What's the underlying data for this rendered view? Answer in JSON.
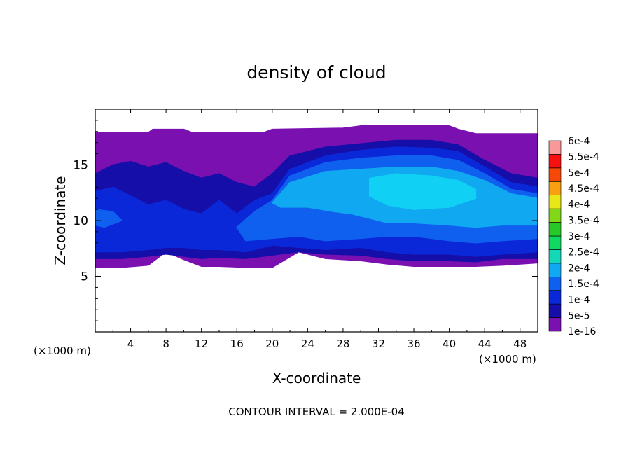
{
  "chart_data": {
    "type": "heatmap",
    "title": "density of cloud",
    "xlabel": "X-coordinate",
    "ylabel": "Z-coordinate",
    "x_unit": "(×1000 m)",
    "y_unit": "(×1000 m)",
    "xlim": [
      0,
      50
    ],
    "ylim": [
      0,
      20
    ],
    "x_ticks": [
      4,
      8,
      12,
      16,
      20,
      24,
      28,
      32,
      36,
      40,
      44,
      48
    ],
    "y_ticks": [
      5,
      10,
      15
    ],
    "footer": "CONTOUR INTERVAL = 2.000E-04",
    "colorbar": {
      "labels": [
        "1e-16",
        "5e-5",
        "1e-4",
        "1.5e-4",
        "2e-4",
        "2.5e-4",
        "3e-4",
        "3.5e-4",
        "4e-4",
        "4.5e-4",
        "5e-4",
        "5.5e-4",
        "6e-4"
      ],
      "colors": [
        "#7a10b0",
        "#160ea8",
        "#0a28d8",
        "#1060f0",
        "#10a8f0",
        "#12d8b8",
        "#10d860",
        "#28c828",
        "#80d818",
        "#e8e818",
        "#f8a010",
        "#f84808",
        "#f81010",
        "#f89898"
      ]
    },
    "cloud_layers": [
      {
        "level": "1e-16",
        "color": "#7a10b0",
        "top": [
          [
            0,
            17.9
          ],
          [
            3,
            17.9
          ],
          [
            6,
            17.9
          ],
          [
            6.5,
            18.2
          ],
          [
            10,
            18.2
          ],
          [
            11,
            17.9
          ],
          [
            19,
            17.9
          ],
          [
            20,
            18.2
          ],
          [
            28,
            18.3
          ],
          [
            30,
            18.5
          ],
          [
            40,
            18.5
          ],
          [
            41,
            18.2
          ],
          [
            43,
            17.8
          ],
          [
            50,
            17.8
          ]
        ],
        "bottom": [
          [
            50,
            6.2
          ],
          [
            46,
            6.0
          ],
          [
            43,
            5.9
          ],
          [
            40,
            5.9
          ],
          [
            36,
            5.9
          ],
          [
            33,
            6.1
          ],
          [
            30,
            6.4
          ],
          [
            26,
            6.6
          ],
          [
            23,
            7.2
          ],
          [
            20,
            5.8
          ],
          [
            17,
            5.8
          ],
          [
            14,
            5.9
          ],
          [
            12,
            5.9
          ],
          [
            10,
            6.5
          ],
          [
            8,
            7.2
          ],
          [
            6,
            6.0
          ],
          [
            3,
            5.8
          ],
          [
            0,
            5.8
          ]
        ]
      },
      {
        "level": "5e-5",
        "color": "#160ea8",
        "top": [
          [
            0,
            14.2
          ],
          [
            2,
            15.0
          ],
          [
            4,
            15.3
          ],
          [
            6,
            14.8
          ],
          [
            8,
            15.2
          ],
          [
            10,
            14.4
          ],
          [
            12,
            13.8
          ],
          [
            14,
            14.2
          ],
          [
            16,
            13.4
          ],
          [
            18,
            13.0
          ],
          [
            20,
            14.2
          ],
          [
            22,
            15.8
          ],
          [
            26,
            16.6
          ],
          [
            30,
            16.9
          ],
          [
            34,
            17.2
          ],
          [
            38,
            17.2
          ],
          [
            41,
            16.8
          ],
          [
            44,
            15.4
          ],
          [
            47,
            14.2
          ],
          [
            50,
            13.8
          ]
        ],
        "bottom": [
          [
            50,
            6.6
          ],
          [
            46,
            6.6
          ],
          [
            43,
            6.3
          ],
          [
            40,
            6.4
          ],
          [
            36,
            6.4
          ],
          [
            33,
            6.6
          ],
          [
            30,
            6.9
          ],
          [
            26,
            7.0
          ],
          [
            23,
            7.2
          ],
          [
            20,
            6.9
          ],
          [
            17,
            6.6
          ],
          [
            14,
            6.7
          ],
          [
            12,
            6.6
          ],
          [
            10,
            6.8
          ],
          [
            8,
            7.0
          ],
          [
            6,
            6.8
          ],
          [
            3,
            6.6
          ],
          [
            0,
            6.6
          ]
        ]
      },
      {
        "level": "1e-4",
        "color": "#0a28d8",
        "top": [
          [
            0,
            12.6
          ],
          [
            2,
            13.0
          ],
          [
            4,
            12.2
          ],
          [
            6,
            11.4
          ],
          [
            8,
            11.8
          ],
          [
            10,
            11.0
          ],
          [
            12,
            10.6
          ],
          [
            14,
            11.8
          ],
          [
            16,
            10.6
          ],
          [
            18,
            11.8
          ],
          [
            20,
            12.4
          ],
          [
            22,
            14.6
          ],
          [
            26,
            15.8
          ],
          [
            30,
            16.3
          ],
          [
            34,
            16.6
          ],
          [
            38,
            16.5
          ],
          [
            41,
            16.2
          ],
          [
            44,
            14.8
          ],
          [
            47,
            13.4
          ],
          [
            50,
            13.0
          ]
        ],
        "bottom": [
          [
            50,
            7.2
          ],
          [
            46,
            7.0
          ],
          [
            43,
            6.8
          ],
          [
            40,
            7.0
          ],
          [
            36,
            7.0
          ],
          [
            33,
            7.2
          ],
          [
            30,
            7.6
          ],
          [
            26,
            7.4
          ],
          [
            23,
            7.6
          ],
          [
            20,
            7.8
          ],
          [
            17,
            7.2
          ],
          [
            14,
            7.4
          ],
          [
            12,
            7.4
          ],
          [
            10,
            7.6
          ],
          [
            8,
            7.6
          ],
          [
            6,
            7.4
          ],
          [
            3,
            7.2
          ],
          [
            0,
            7.2
          ]
        ]
      },
      {
        "level": "1.5e-4",
        "color": "#1060f0",
        "top": [
          [
            0,
            11.0
          ],
          [
            2,
            10.8
          ],
          [
            3,
            10.0
          ],
          [
            1,
            9.4
          ],
          [
            0,
            9.6
          ]
        ],
        "bottom": []
      },
      {
        "level": "1.5e-4",
        "color": "#1060f0",
        "top": [
          [
            16,
            9.4
          ],
          [
            18,
            10.8
          ],
          [
            20,
            11.8
          ],
          [
            22,
            14.0
          ],
          [
            26,
            15.2
          ],
          [
            30,
            15.6
          ],
          [
            34,
            15.8
          ],
          [
            38,
            15.8
          ],
          [
            41,
            15.4
          ],
          [
            44,
            14.2
          ],
          [
            47,
            12.8
          ],
          [
            50,
            12.4
          ]
        ],
        "bottom": [
          [
            50,
            8.4
          ],
          [
            46,
            8.2
          ],
          [
            43,
            8.0
          ],
          [
            40,
            8.2
          ],
          [
            36,
            8.6
          ],
          [
            33,
            8.6
          ],
          [
            30,
            8.4
          ],
          [
            26,
            8.2
          ],
          [
            23,
            8.6
          ],
          [
            20,
            8.4
          ],
          [
            17,
            8.2
          ]
        ]
      },
      {
        "level": "2e-4",
        "color": "#10a8f0",
        "top": [
          [
            20,
            11.6
          ],
          [
            22,
            13.4
          ],
          [
            26,
            14.4
          ],
          [
            30,
            14.6
          ],
          [
            34,
            14.8
          ],
          [
            38,
            14.8
          ],
          [
            41,
            14.4
          ],
          [
            44,
            13.6
          ],
          [
            47,
            12.4
          ],
          [
            50,
            12.0
          ]
        ],
        "bottom": [
          [
            50,
            9.6
          ],
          [
            46,
            9.6
          ],
          [
            43,
            9.4
          ],
          [
            40,
            9.6
          ],
          [
            36,
            9.8
          ],
          [
            33,
            9.8
          ],
          [
            31,
            10.2
          ],
          [
            29,
            10.6
          ],
          [
            27,
            10.8
          ],
          [
            24,
            11.2
          ],
          [
            21,
            11.2
          ]
        ]
      },
      {
        "level": "2e-4",
        "color": "#10d0f4",
        "top": [
          [
            31,
            13.8
          ],
          [
            34,
            14.2
          ],
          [
            38,
            14.0
          ],
          [
            41,
            13.6
          ],
          [
            43,
            12.8
          ]
        ],
        "bottom": [
          [
            43,
            12.0
          ],
          [
            40,
            11.2
          ],
          [
            36,
            11.0
          ],
          [
            33,
            11.4
          ],
          [
            31,
            12.2
          ]
        ]
      }
    ]
  }
}
